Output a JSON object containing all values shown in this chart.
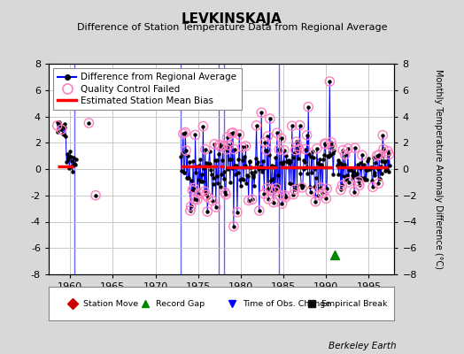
{
  "title": "LEVKINSKAJA",
  "subtitle": "Difference of Station Temperature Data from Regional Average",
  "ylabel_right": "Monthly Temperature Anomaly Difference (°C)",
  "ylim": [
    -8,
    8
  ],
  "xlim": [
    1957.5,
    1998.0
  ],
  "xticks": [
    1960,
    1965,
    1970,
    1975,
    1980,
    1985,
    1990,
    1995
  ],
  "yticks": [
    -8,
    -6,
    -4,
    -2,
    0,
    2,
    4,
    6,
    8
  ],
  "bg_color": "#d8d8d8",
  "plot_bg_color": "#ffffff",
  "grid_color": "#c0c0c0",
  "vertical_line_color": "#6666ff",
  "vertical_lines": [
    1960.5,
    1973.0,
    1977.42,
    1978.08,
    1984.5
  ],
  "record_gap_x": 1991.0,
  "record_gap_y": -6.5,
  "bias_segs": [
    [
      [
        1958.5,
        1960.4
      ],
      [
        0.18,
        0.18
      ]
    ],
    [
      [
        1973.0,
        1977.3
      ],
      [
        0.18,
        0.18
      ]
    ],
    [
      [
        1977.5,
        1978.0
      ],
      [
        0.18,
        0.18
      ]
    ],
    [
      [
        1978.2,
        1984.3
      ],
      [
        0.12,
        0.12
      ]
    ],
    [
      [
        1984.6,
        1990.8
      ],
      [
        0.12,
        0.12
      ]
    ],
    [
      [
        1991.2,
        1997.2
      ],
      [
        0.12,
        0.12
      ]
    ]
  ],
  "main_line_color": "#0000ff",
  "main_dot_color": "#000000",
  "qc_color": "#ff80c0",
  "bias_color": "#ff0000",
  "footer": "Berkeley Earth",
  "legend_bottom_items": [
    {
      "marker": "D",
      "color": "#cc0000",
      "label": "Station Move"
    },
    {
      "marker": "^",
      "color": "#008800",
      "label": "Record Gap"
    },
    {
      "marker": "v",
      "color": "#0000ff",
      "label": "Time of Obs. Change"
    },
    {
      "marker": "s",
      "color": "#111111",
      "label": "Empirical Break"
    }
  ]
}
